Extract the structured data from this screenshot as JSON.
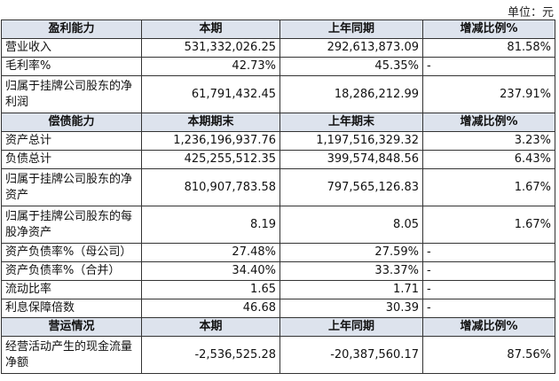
{
  "unit_label": "单位：元",
  "sections": [
    {
      "header": [
        "盈利能力",
        "本期",
        "上年同期",
        "增减比例%"
      ],
      "rows": [
        {
          "label": "营业收入",
          "current": "531,332,026.25",
          "prior": "292,613,873.09",
          "change": "81.58%"
        },
        {
          "label": "毛利率%",
          "current": "42.73%",
          "prior": "45.35%",
          "change": "-"
        },
        {
          "label": "归属于挂牌公司股东的净利润",
          "current": "61,791,432.45",
          "prior": "18,286,212.99",
          "change": "237.91%"
        }
      ]
    },
    {
      "header": [
        "偿债能力",
        "本期期末",
        "上年期末",
        "增减比例%"
      ],
      "rows": [
        {
          "label": "资产总计",
          "current": "1,236,196,937.76",
          "prior": "1,197,516,329.32",
          "change": "3.23%"
        },
        {
          "label": "负债总计",
          "current": "425,255,512.35",
          "prior": "399,574,848.56",
          "change": "6.43%"
        },
        {
          "label": "归属于挂牌公司股东的净资产",
          "current": "810,907,783.58",
          "prior": "797,565,126.83",
          "change": "1.67%"
        },
        {
          "label": "归属于挂牌公司股东的每股净资产",
          "current": "8.19",
          "prior": "8.05",
          "change": "1.67%"
        },
        {
          "label": "资产负债率%（母公司）",
          "current": "27.48%",
          "prior": "27.59%",
          "change": "-"
        },
        {
          "label": "资产负债率%（合并）",
          "current": "34.40%",
          "prior": "33.37%",
          "change": "-"
        },
        {
          "label": "流动比率",
          "current": "1.65",
          "prior": "1.71",
          "change": "-"
        },
        {
          "label": "利息保障倍数",
          "current": "46.68",
          "prior": "30.39",
          "change": "-"
        }
      ]
    },
    {
      "header": [
        "营运情况",
        "本期",
        "上年同期",
        "增减比例%"
      ],
      "rows": [
        {
          "label": "经营活动产生的现金流量净额",
          "current": "-2,536,525.28",
          "prior": "-20,387,560.17",
          "change": "87.56%"
        }
      ]
    }
  ]
}
